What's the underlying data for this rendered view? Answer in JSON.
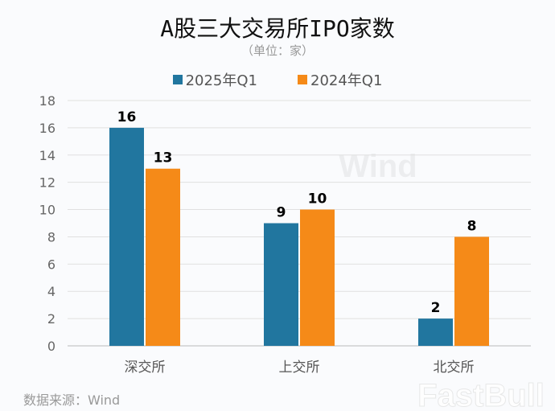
{
  "chart_data": {
    "type": "bar",
    "title": "A股三大交易所IPO家数",
    "subtitle": "（单位：家）",
    "categories": [
      "深交所",
      "上交所",
      "北交所"
    ],
    "series": [
      {
        "name": "2025年Q1",
        "values": [
          16,
          9,
          2
        ],
        "color": "#21769f"
      },
      {
        "name": "2024年Q1",
        "values": [
          13,
          10,
          8
        ],
        "color": "#f58a18"
      }
    ],
    "ylim": [
      0,
      18
    ],
    "yticks": [
      0,
      2,
      4,
      6,
      8,
      10,
      12,
      14,
      16,
      18
    ],
    "grid": true,
    "legend": "top",
    "xlabel": "",
    "ylabel": ""
  },
  "source": "数据来源：Wind",
  "watermarks": [
    "Wind",
    "FastBull"
  ]
}
